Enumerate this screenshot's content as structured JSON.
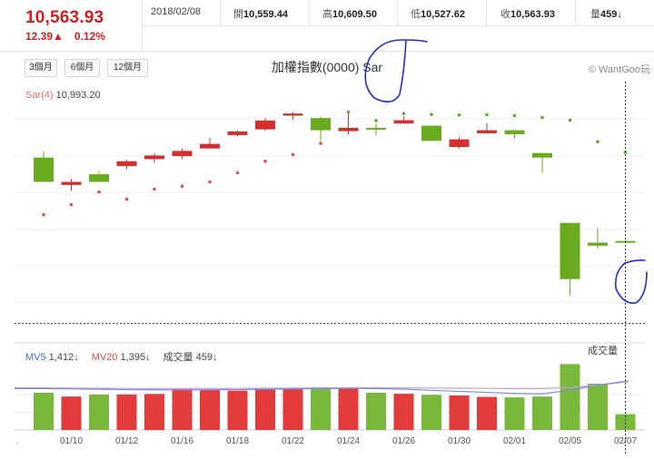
{
  "quote": {
    "price": "10,563.93",
    "change": "12.39▲",
    "change_pct": "0.12%"
  },
  "stats": {
    "date": "2018/02/08",
    "open_label": "開",
    "open": "10,559.44",
    "high_label": "高",
    "high": "10,609.50",
    "low_label": "低",
    "low": "10,527.62",
    "close_label": "收",
    "close": "10,563.93",
    "volume_label": "量",
    "volume": "459↓"
  },
  "ranges": [
    "3個月",
    "6個月",
    "12個月"
  ],
  "title": "加權指數(0000) Sar",
  "credit": "© WantGoo玩",
  "sar_label": {
    "name": "Sar(4)",
    "value": "10,993.20"
  },
  "volume_panel": {
    "title": "成交量",
    "mv5_label": "MV5",
    "mv5_value": "1,412↓",
    "mv20_label": "MV20",
    "mv20_value": "1,395↓",
    "vol_label": "成交量",
    "vol_value": "459↓"
  },
  "colors": {
    "up": "#d32f2f",
    "down": "#6aaa1e",
    "mv5": "#7b8fd6",
    "mv20": "#c99ad6",
    "annotation": "#1f2fd0"
  },
  "chart_data": {
    "type": "candlestick",
    "x_tick_labels": [
      "01/10",
      "01/12",
      "01/16",
      "01/18",
      "01/22",
      "01/24",
      "01/26",
      "01/30",
      "02/01",
      "02/05",
      "02/07"
    ],
    "current_value": 10563.93,
    "price_ylim": [
      10500,
      11360
    ],
    "candles": [
      {
        "date": "01/09",
        "open": 11110,
        "close": 11030,
        "high": 11130,
        "low": 11030
      },
      {
        "date": "01/10",
        "open": 11020,
        "close": 11030,
        "high": 11040,
        "low": 11000
      },
      {
        "date": "01/11",
        "open": 11055,
        "close": 11030,
        "high": 11065,
        "low": 11030
      },
      {
        "date": "01/12",
        "open": 11082,
        "close": 11098,
        "high": 11102,
        "low": 11072
      },
      {
        "date": "01/15",
        "open": 11105,
        "close": 11117,
        "high": 11125,
        "low": 11092
      },
      {
        "date": "01/16",
        "open": 11115,
        "close": 11132,
        "high": 11140,
        "low": 11105
      },
      {
        "date": "01/17",
        "open": 11140,
        "close": 11155,
        "high": 11175,
        "low": 11140
      },
      {
        "date": "01/18",
        "open": 11184,
        "close": 11196,
        "high": 11198,
        "low": 11180
      },
      {
        "date": "01/19",
        "open": 11203,
        "close": 11232,
        "high": 11240,
        "low": 11198
      },
      {
        "date": "01/22",
        "open": 11248,
        "close": 11255,
        "high": 11260,
        "low": 11235
      },
      {
        "date": "01/23",
        "open": 11240,
        "close": 11200,
        "high": 11245,
        "low": 11165
      },
      {
        "date": "01/24",
        "open": 11197,
        "close": 11208,
        "high": 11257,
        "low": 11186
      },
      {
        "date": "01/25",
        "open": 11207,
        "close": 11203,
        "high": 11222,
        "low": 11183
      },
      {
        "date": "01/26",
        "open": 11222,
        "close": 11233,
        "high": 11245,
        "low": 11222
      },
      {
        "date": "01/29",
        "open": 11215,
        "close": 11165,
        "high": 11215,
        "low": 11165
      },
      {
        "date": "01/30",
        "open": 11145,
        "close": 11170,
        "high": 11178,
        "low": 11140
      },
      {
        "date": "01/31",
        "open": 11190,
        "close": 11200,
        "high": 11223,
        "low": 11188
      },
      {
        "date": "02/01",
        "open": 11200,
        "close": 11187,
        "high": 11202,
        "low": 11172
      },
      {
        "date": "02/02",
        "open": 11125,
        "close": 11110,
        "high": 11125,
        "low": 11060
      },
      {
        "date": "02/05",
        "open": 10895,
        "close": 10710,
        "high": 10895,
        "low": 10655
      },
      {
        "date": "02/06",
        "open": 10830,
        "close": 10820,
        "high": 10880,
        "low": 10810
      },
      {
        "date": "02/07",
        "open": 10835,
        "close": 10830,
        "high": 10838,
        "low": 10828
      }
    ],
    "sar": [
      10922,
      10955,
      10997,
      10973,
      11006,
      11016,
      11030,
      11060,
      11098,
      11120,
      11157,
      11260,
      11232,
      11255,
      11252,
      11250,
      11251,
      11248,
      11242,
      11233,
      11162,
      11127
    ],
    "volume_ylim": [
      0,
      2000
    ],
    "volume": [
      1080,
      970,
      1030,
      1030,
      1045,
      1180,
      1170,
      1140,
      1210,
      1220,
      1240,
      1220,
      1080,
      1050,
      1020,
      1000,
      960,
      945,
      970,
      1910,
      1340,
      459
    ],
    "mv5": [
      1200,
      1195,
      1180,
      1170,
      1165,
      1160,
      1165,
      1170,
      1180,
      1190,
      1200,
      1205,
      1200,
      1180,
      1150,
      1120,
      1090,
      1060,
      1050,
      1150,
      1300,
      1412
    ],
    "mv20": [
      1220,
      1215,
      1210,
      1205,
      1200,
      1200,
      1200,
      1205,
      1210,
      1215,
      1220,
      1225,
      1225,
      1220,
      1215,
      1210,
      1205,
      1200,
      1200,
      1230,
      1300,
      1395
    ]
  }
}
